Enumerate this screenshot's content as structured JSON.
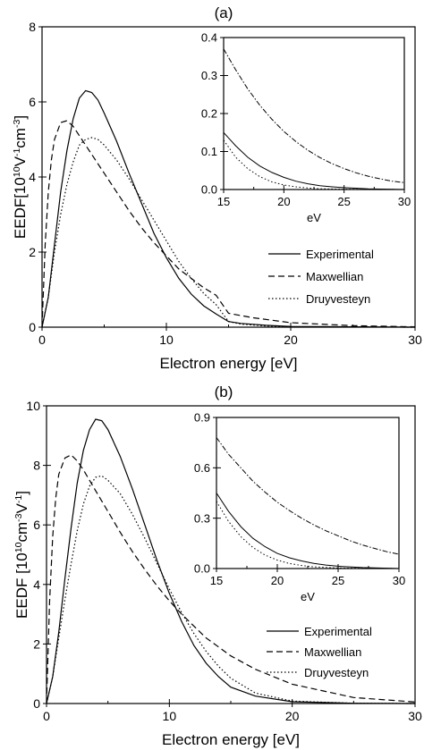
{
  "chart_data": [
    {
      "type": "line",
      "panel_label": "(a)",
      "xlabel": "Electron energy [eV]",
      "ylabel": "EEDF[10",
      "ylabel_parts": [
        "EEDF[10",
        "10",
        "V",
        "-1",
        "cm",
        "-3",
        "]"
      ],
      "xlim": [
        0,
        30
      ],
      "ylim": [
        0,
        8
      ],
      "xticks": [
        "0",
        "10",
        "20",
        "30"
      ],
      "yticks": [
        "0",
        "2",
        "4",
        "6",
        "8"
      ],
      "legend": {
        "placement": "right",
        "entries": [
          "Experimental",
          "Maxwellian",
          "Druyvesteyn"
        ]
      },
      "series": [
        {
          "name": "Experimental",
          "style": "solid",
          "x": [
            0,
            0.5,
            1,
            1.5,
            2,
            2.5,
            3,
            3.5,
            4,
            4.5,
            5,
            6,
            7,
            8,
            9,
            10,
            11,
            12,
            13,
            14,
            15,
            16,
            18,
            20,
            25,
            30
          ],
          "y": [
            0,
            0.8,
            2.2,
            3.6,
            4.7,
            5.55,
            6.1,
            6.3,
            6.25,
            6.05,
            5.7,
            4.95,
            4.1,
            3.3,
            2.5,
            1.85,
            1.3,
            0.88,
            0.57,
            0.35,
            0.15,
            0.1,
            0.05,
            0.02,
            0.01,
            0
          ]
        },
        {
          "name": "Maxwellian",
          "style": "dashed",
          "x": [
            0,
            0.25,
            0.5,
            0.75,
            1,
            1.5,
            2,
            2.5,
            3,
            4,
            5,
            6,
            7,
            8,
            9,
            10,
            11,
            12,
            13,
            14,
            15,
            17,
            20,
            25,
            30
          ],
          "y": [
            0,
            2.2,
            3.6,
            4.45,
            5.0,
            5.45,
            5.5,
            5.35,
            5.1,
            4.6,
            4.1,
            3.6,
            3.1,
            2.65,
            2.25,
            1.9,
            1.55,
            1.3,
            1.05,
            0.85,
            0.37,
            0.25,
            0.12,
            0.04,
            0.01
          ]
        },
        {
          "name": "Druyvesteyn",
          "style": "dotted",
          "x": [
            0,
            0.5,
            1,
            1.5,
            2,
            2.5,
            3,
            3.5,
            4,
            4.5,
            5,
            6,
            7,
            8,
            9,
            10,
            11,
            12,
            13,
            14,
            15,
            16,
            18,
            20,
            25,
            30
          ],
          "y": [
            0,
            0.8,
            2.0,
            3.0,
            3.8,
            4.4,
            4.85,
            5.0,
            5.05,
            5.0,
            4.85,
            4.45,
            3.95,
            3.4,
            2.85,
            2.3,
            1.75,
            1.3,
            0.9,
            0.6,
            0.15,
            0.08,
            0.03,
            0.01,
            0.005,
            0
          ]
        }
      ],
      "inset": {
        "xlabel": "eV",
        "xlim": [
          15,
          30
        ],
        "ylim": [
          0,
          0.4
        ],
        "xticks": [
          "15",
          "20",
          "25",
          "30"
        ],
        "yticks": [
          "0.0",
          "0.1",
          "0.2",
          "0.3",
          "0.4"
        ],
        "series": [
          {
            "name": "Experimental",
            "style": "solid",
            "x": [
              15,
              16,
              17,
              18,
              19,
              20,
              21,
              22,
              23,
              24,
              25,
              27,
              30
            ],
            "y": [
              0.15,
              0.115,
              0.085,
              0.062,
              0.045,
              0.032,
              0.022,
              0.015,
              0.01,
              0.007,
              0.005,
              0.002,
              0.0
            ]
          },
          {
            "name": "Maxwellian",
            "style": "dashdot",
            "x": [
              15,
              16,
              17,
              18,
              19,
              20,
              21,
              22,
              23,
              24,
              25,
              26,
              27,
              28,
              29,
              30
            ],
            "y": [
              0.37,
              0.315,
              0.265,
              0.222,
              0.185,
              0.153,
              0.126,
              0.103,
              0.084,
              0.068,
              0.055,
              0.044,
              0.035,
              0.028,
              0.022,
              0.018
            ]
          },
          {
            "name": "Druyvesteyn",
            "style": "dotted",
            "x": [
              15,
              16,
              17,
              18,
              19,
              20,
              21,
              22,
              23,
              25,
              30
            ],
            "y": [
              0.13,
              0.085,
              0.055,
              0.034,
              0.02,
              0.012,
              0.007,
              0.004,
              0.002,
              0.001,
              0.0
            ]
          }
        ]
      }
    },
    {
      "type": "line",
      "panel_label": "(b)",
      "xlabel": "Electron energy [eV]",
      "ylabel": "EEDF [10",
      "ylabel_parts": [
        "EEDF [10",
        "10",
        "cm",
        "-3",
        "V",
        "-1",
        "]"
      ],
      "xlim": [
        0,
        30
      ],
      "ylim": [
        0,
        10
      ],
      "xticks": [
        "0",
        "10",
        "20",
        "30"
      ],
      "yticks": [
        "0",
        "2",
        "4",
        "6",
        "8",
        "10"
      ],
      "legend": {
        "placement": "bottom-right",
        "entries": [
          "Experimental",
          "Maxwellian",
          "Druyvesteyn"
        ]
      },
      "series": [
        {
          "name": "Experimental",
          "style": "solid",
          "x": [
            0,
            0.5,
            1,
            1.5,
            2,
            2.5,
            3,
            3.5,
            4,
            4.5,
            5,
            6,
            7,
            8,
            9,
            10,
            11,
            12,
            13,
            14,
            15,
            17,
            20,
            25,
            30
          ],
          "y": [
            0,
            0.9,
            2.4,
            4.2,
            5.9,
            7.4,
            8.5,
            9.2,
            9.55,
            9.5,
            9.2,
            8.3,
            7.2,
            6.0,
            4.8,
            3.7,
            2.75,
            1.95,
            1.35,
            0.9,
            0.55,
            0.25,
            0.06,
            0.01,
            0
          ]
        },
        {
          "name": "Maxwellian",
          "style": "dashed",
          "x": [
            0,
            0.25,
            0.5,
            0.75,
            1,
            1.5,
            2,
            2.5,
            3,
            4,
            5,
            6,
            7,
            8,
            9,
            10,
            11,
            12,
            13,
            14,
            15,
            17,
            20,
            25,
            30
          ],
          "y": [
            0,
            3.4,
            5.6,
            6.9,
            7.7,
            8.25,
            8.35,
            8.15,
            7.85,
            7.15,
            6.45,
            5.75,
            5.1,
            4.5,
            3.95,
            3.45,
            3.0,
            2.6,
            2.2,
            1.9,
            1.6,
            1.15,
            0.65,
            0.2,
            0.05
          ]
        },
        {
          "name": "Druyvesteyn",
          "style": "dotted",
          "x": [
            0,
            0.5,
            1,
            1.5,
            2,
            2.5,
            3,
            3.5,
            4,
            4.5,
            5,
            6,
            7,
            8,
            9,
            10,
            11,
            12,
            13,
            14,
            15,
            17,
            20,
            25,
            30
          ],
          "y": [
            0,
            0.9,
            2.2,
            3.5,
            4.7,
            5.8,
            6.7,
            7.3,
            7.6,
            7.65,
            7.5,
            7.05,
            6.35,
            5.55,
            4.7,
            3.85,
            3.05,
            2.35,
            1.75,
            1.25,
            0.85,
            0.35,
            0.08,
            0.01,
            0
          ]
        }
      ],
      "inset": {
        "xlabel": "eV",
        "xlim": [
          15,
          30
        ],
        "ylim": [
          0,
          0.9
        ],
        "xticks": [
          "15",
          "20",
          "25",
          "30"
        ],
        "yticks": [
          "0.0",
          "0.3",
          "0.6",
          "0.9"
        ],
        "series": [
          {
            "name": "Experimental",
            "style": "solid",
            "x": [
              15,
              16,
              17,
              18,
              19,
              20,
              21,
              22,
              23,
              24,
              25,
              27,
              30
            ],
            "y": [
              0.45,
              0.34,
              0.25,
              0.18,
              0.13,
              0.09,
              0.064,
              0.045,
              0.031,
              0.021,
              0.014,
              0.006,
              0.0
            ]
          },
          {
            "name": "Maxwellian",
            "style": "dashdot",
            "x": [
              15,
              16,
              17,
              18,
              19,
              20,
              21,
              22,
              23,
              24,
              25,
              26,
              27,
              28,
              29,
              30
            ],
            "y": [
              0.78,
              0.68,
              0.6,
              0.52,
              0.455,
              0.395,
              0.345,
              0.3,
              0.26,
              0.225,
              0.195,
              0.165,
              0.14,
              0.12,
              0.1,
              0.085
            ]
          },
          {
            "name": "Druyvesteyn",
            "style": "dotted",
            "x": [
              15,
              16,
              17,
              18,
              19,
              20,
              21,
              22,
              23,
              25,
              30
            ],
            "y": [
              0.4,
              0.28,
              0.19,
              0.125,
              0.08,
              0.05,
              0.03,
              0.018,
              0.01,
              0.003,
              0.0
            ]
          }
        ]
      }
    }
  ]
}
